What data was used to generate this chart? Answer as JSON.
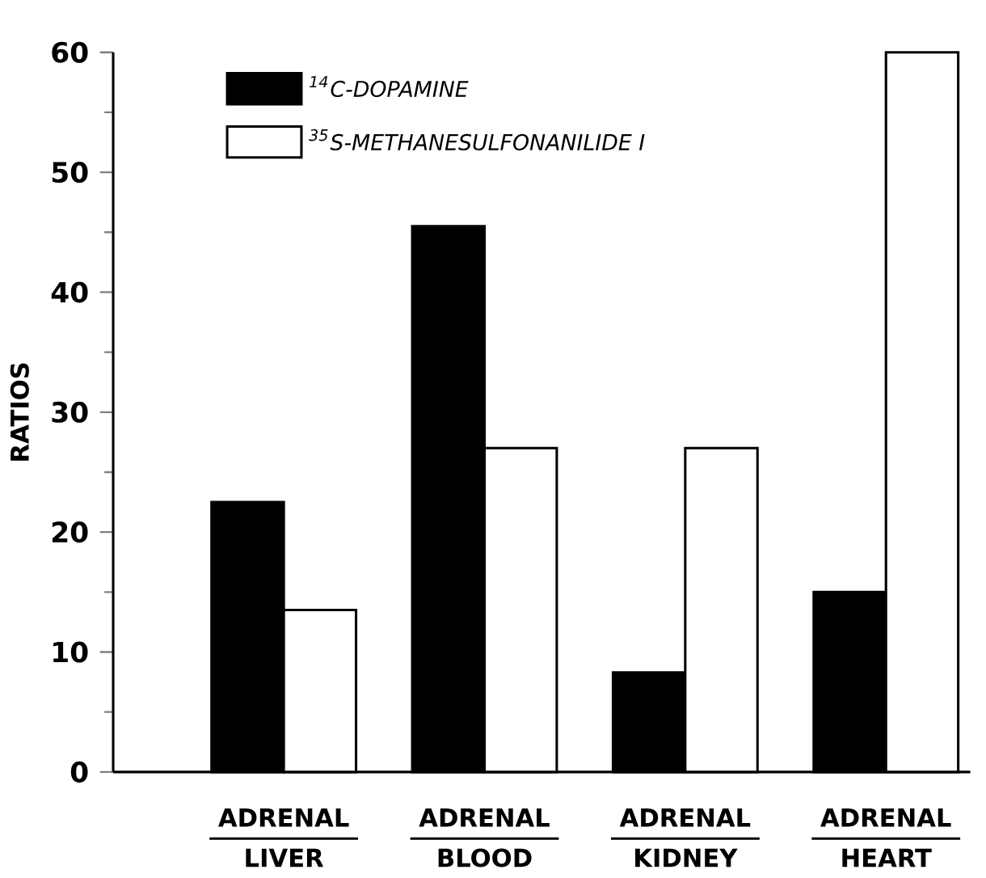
{
  "chart_data": {
    "type": "bar",
    "ylabel": "RATIOS",
    "categories": [
      "ADRENAL LIVER",
      "ADRENAL BLOOD",
      "ADRENAL KIDNEY",
      "ADRENAL HEART"
    ],
    "series": [
      {
        "name": "$^{14}$C-DOPAMINE",
        "color": "#000000",
        "values": [
          22.5,
          45.5,
          8.3,
          15.0
        ]
      },
      {
        "name": "$^{35}$S-METHANESULFONANILIDE I",
        "color": "#ffffff",
        "values": [
          13.5,
          27,
          27,
          60
        ]
      }
    ],
    "ylim": [
      0,
      60
    ],
    "yticks": [
      0,
      10,
      20,
      30,
      40,
      50,
      60
    ],
    "grid": false,
    "legend": "top left"
  }
}
